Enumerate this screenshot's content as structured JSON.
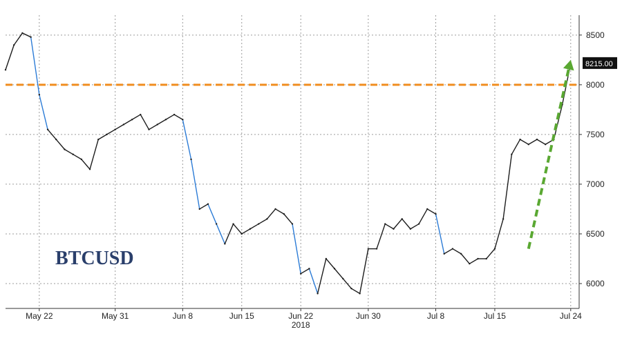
{
  "chart_data": {
    "type": "line",
    "title": "",
    "watermark": "BTCUSD",
    "xlabel": "",
    "ylabel": "",
    "ylim": [
      5750,
      8700
    ],
    "y_ticks": [
      6000,
      6500,
      7000,
      7500,
      8000,
      8500
    ],
    "x_tick_labels": [
      "May 22",
      "May 31",
      "Jun 8",
      "Jun 15",
      "Jun 22",
      "Jun 30",
      "Jul 8",
      "Jul 15",
      "Jul 24"
    ],
    "x_year_label": "2018",
    "grid": true,
    "last_value_label": "8215.00",
    "reference_line": {
      "value": 8000,
      "color": "#f08c1e",
      "style": "dashed"
    },
    "trend_arrow": {
      "from": [
        "2018-07-19",
        6350
      ],
      "to": [
        "2018-07-24",
        8250
      ],
      "color": "#5aa832"
    },
    "colors": {
      "price": "#1c1c1c",
      "price_down_leg": "#2b7bd6"
    },
    "series": [
      {
        "values_x": [
          "2018-05-18",
          "2018-05-19",
          "2018-05-20",
          "2018-05-21",
          "2018-05-22",
          "2018-05-23",
          "2018-05-24",
          "2018-05-25",
          "2018-05-26",
          "2018-05-27",
          "2018-05-28",
          "2018-05-29",
          "2018-05-30",
          "2018-05-31",
          "2018-06-01",
          "2018-06-02",
          "2018-06-03",
          "2018-06-04",
          "2018-06-05",
          "2018-06-06",
          "2018-06-07",
          "2018-06-08",
          "2018-06-09",
          "2018-06-10",
          "2018-06-11",
          "2018-06-12",
          "2018-06-13",
          "2018-06-14",
          "2018-06-15",
          "2018-06-16",
          "2018-06-17",
          "2018-06-18",
          "2018-06-19",
          "2018-06-20",
          "2018-06-21",
          "2018-06-22",
          "2018-06-23",
          "2018-06-24",
          "2018-06-25",
          "2018-06-26",
          "2018-06-27",
          "2018-06-28",
          "2018-06-29",
          "2018-06-30",
          "2018-07-01",
          "2018-07-02",
          "2018-07-03",
          "2018-07-04",
          "2018-07-05",
          "2018-07-06",
          "2018-07-07",
          "2018-07-08",
          "2018-07-09",
          "2018-07-10",
          "2018-07-11",
          "2018-07-12",
          "2018-07-13",
          "2018-07-14",
          "2018-07-15",
          "2018-07-16",
          "2018-07-17",
          "2018-07-18",
          "2018-07-19",
          "2018-07-20",
          "2018-07-21",
          "2018-07-22",
          "2018-07-23",
          "2018-07-24"
        ],
        "values": [
          8150,
          8400,
          8520,
          8480,
          7900,
          7550,
          7450,
          7350,
          7300,
          7250,
          7150,
          7450,
          7500,
          7550,
          7600,
          7650,
          7700,
          7550,
          7600,
          7650,
          7700,
          7650,
          7250,
          6750,
          6800,
          6600,
          6400,
          6600,
          6500,
          6550,
          6600,
          6650,
          6750,
          6700,
          6600,
          6100,
          6150,
          5900,
          6250,
          6150,
          6050,
          5950,
          5900,
          6350,
          6350,
          6600,
          6550,
          6650,
          6550,
          6600,
          6750,
          6700,
          6300,
          6350,
          6300,
          6200,
          6250,
          6250,
          6350,
          6650,
          7300,
          7450,
          7400,
          7450,
          7400,
          7450,
          7800,
          8215
        ]
      }
    ]
  }
}
